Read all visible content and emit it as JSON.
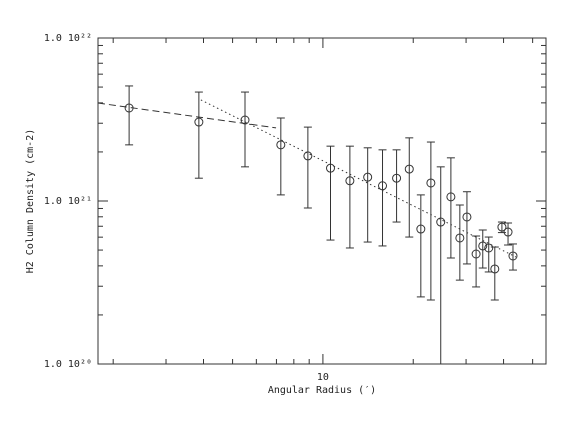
{
  "chart_data": {
    "type": "scatter",
    "x_label": "Angular Radius (′)",
    "y_label": "H2 Column Density (cm-2)",
    "x_log": true,
    "y_log": true,
    "xlim": [
      1.78,
      55.4
    ],
    "ylim": [
      1e+20,
      1e+22
    ],
    "xticks": [
      10
    ],
    "minor_xticks": [
      2,
      3,
      4,
      5,
      6,
      7,
      8,
      9,
      20,
      30,
      40,
      50
    ],
    "yticks": [
      {
        "value": 1e+20,
        "label": "1.0 10²⁰"
      },
      {
        "value": 1e+21,
        "label": "1.0 10²¹"
      },
      {
        "value": 1e+22,
        "label": "1.0 10²²"
      }
    ],
    "minor_yticks": [
      2e+20,
      3e+20,
      4e+20,
      5e+20,
      6e+20,
      7e+20,
      8e+20,
      9e+20,
      2e+21,
      3e+21,
      4e+21,
      5e+21,
      6e+21,
      7e+21,
      8e+21,
      9e+21
    ],
    "color": "#333333",
    "x": [
      2.26,
      3.86,
      5.5,
      7.24,
      8.91,
      10.6,
      12.3,
      14.1,
      15.8,
      17.6,
      19.4,
      21.2,
      22.9,
      24.7,
      26.7,
      28.6,
      30.2,
      32.4,
      34.1,
      35.7,
      37.4,
      39.5,
      41.4,
      43.0
    ],
    "values": [
      3.72e+21,
      3.05e+21,
      3.14e+21,
      2.21e+21,
      1.89e+21,
      1.59e+21,
      1.33e+21,
      1.4e+21,
      1.24e+21,
      1.38e+21,
      1.57e+21,
      6.73e+20,
      1.29e+21,
      7.43e+20,
      1.06e+21,
      5.93e+20,
      7.98e+20,
      4.73e+20,
      5.3e+20,
      5.15e+20,
      3.83e+20,
      6.92e+20,
      6.45e+20,
      4.6e+20
    ],
    "lower": [
      2.21e+21,
      1.38e+21,
      1.62e+21,
      1.09e+21,
      9.06e+20,
      5.76e+20,
      5.15e+20,
      5.6e+20,
      5.3e+20,
      7.43e+20,
      6.01e+20,
      2.58e+20,
      2.47e+20,
      1e+20,
      4.47e+20,
      3.27e+20,
      4.11e+20,
      2.97e+20,
      3.88e+20,
      3.67e+20,
      2.47e+20,
      6.4e+20,
      5.37e+20,
      3.77e+20
    ],
    "upper": [
      5.08e+21,
      4.66e+21,
      4.66e+21,
      3.23e+21,
      2.84e+21,
      2.17e+21,
      2.17e+21,
      2.12e+21,
      2.06e+21,
      2.06e+21,
      2.44e+21,
      1.09e+21,
      2.3e+21,
      1.62e+21,
      1.84e+21,
      9.45e+20,
      1.14e+21,
      6.1e+20,
      6.64e+20,
      6.01e+20,
      5.22e+20,
      7.43e+20,
      7.33e+20,
      5.45e+20
    ],
    "fits": [
      {
        "style": "dashed",
        "x": [
          1.78,
          6.98
        ],
        "y": [
          3.99e+21,
          2.81e+21
        ]
      },
      {
        "style": "dotted",
        "x": [
          3.92,
          44.0
        ],
        "y": [
          4.17e+21,
          4.53e+20
        ]
      }
    ]
  }
}
